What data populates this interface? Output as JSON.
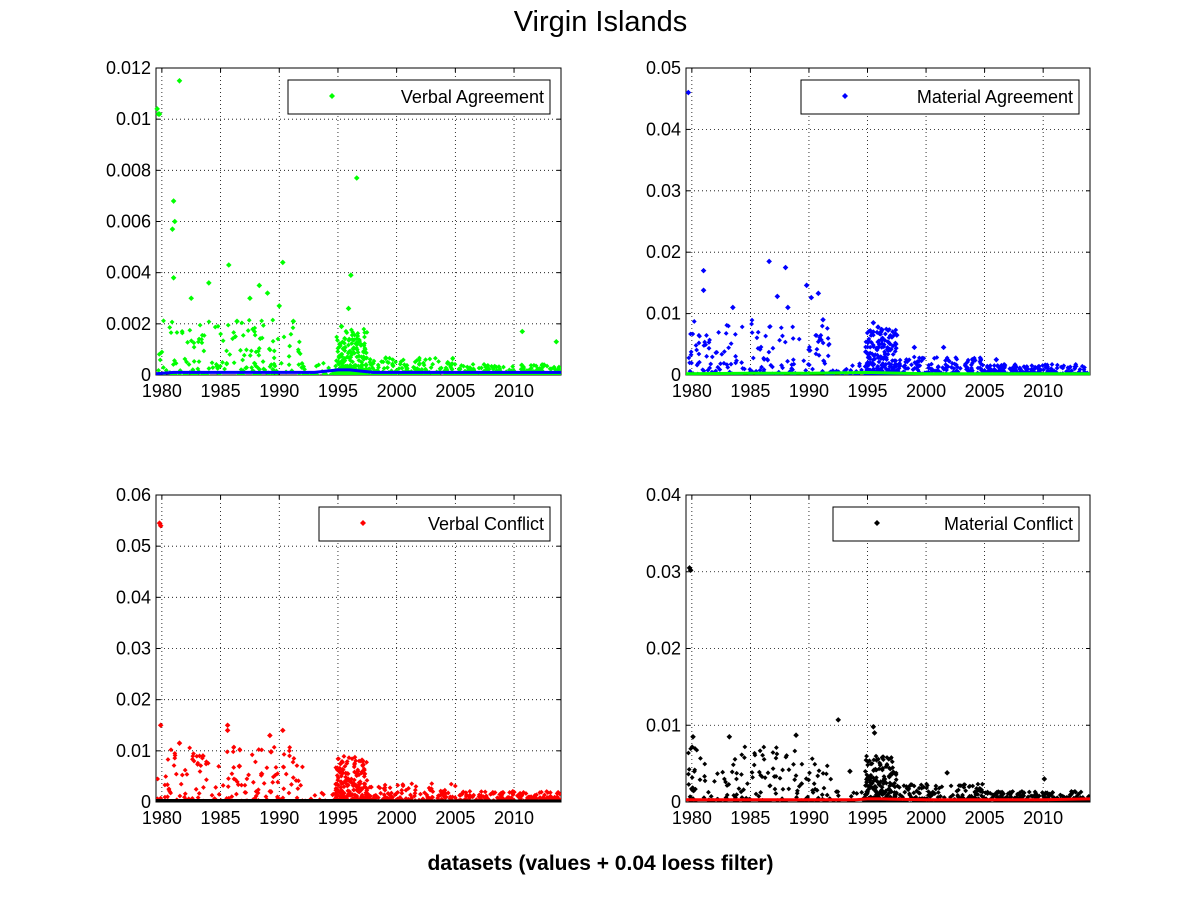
{
  "figure": {
    "title": "Virgin Islands",
    "xlabel": "datasets (values + 0.04 loess filter)"
  },
  "chart_data": [
    {
      "type": "scatter",
      "panel": "top-left",
      "legend": {
        "label": "Verbal Agreement",
        "placement": "top-right"
      },
      "xlim": [
        1979.5,
        2014
      ],
      "ylim": [
        0,
        0.012
      ],
      "xticks": [
        1980,
        1985,
        1990,
        1995,
        2000,
        2005,
        2010
      ],
      "xtick_labels": [
        "1980",
        "1985",
        "1990",
        "1995",
        "2000",
        "2005",
        "2010"
      ],
      "yticks": [
        0,
        0.002,
        0.004,
        0.006,
        0.008,
        0.01,
        0.012
      ],
      "ytick_labels": [
        "0",
        "0.002",
        "0.004",
        "0.006",
        "0.008",
        "0.01",
        "0.012"
      ],
      "grid": true,
      "series": [
        {
          "name": "Verbal Agreement",
          "color": "#00ff00",
          "marker": "diamond",
          "x": [
            1979.6,
            1979.7,
            1979.8,
            1980.9,
            1981.0,
            1981.1,
            1981.5,
            1985.7,
            1990.3,
            1996.1,
            1996.6,
            2010.7,
            2013.6,
            1981.0,
            1982.5,
            1984.0,
            1986.4,
            1987.5,
            1988.3,
            1989.0,
            1990.0,
            1991.2,
            1995.3,
            1995.9
          ],
          "y": [
            0.0104,
            0.0102,
            0.0102,
            0.0057,
            0.0068,
            0.006,
            0.0115,
            0.0043,
            0.0044,
            0.0039,
            0.0077,
            0.0017,
            0.0013,
            0.0038,
            0.003,
            0.0036,
            0.0021,
            0.003,
            0.0035,
            0.0032,
            0.0027,
            0.0021,
            0.0019,
            0.0026
          ]
        },
        {
          "name": "loess filter",
          "color": "#0000ff",
          "line": true,
          "x": [
            1979.5,
            1981,
            1985,
            1990,
            1993,
            1995,
            1996,
            1998,
            2005,
            2010,
            2014
          ],
          "y": [
            5e-05,
            0.0001,
            0.0001,
            0.0001,
            0.0001,
            0.0002,
            0.0002,
            0.0001,
            0.0001,
            0.0001,
            0.0001
          ]
        }
      ]
    },
    {
      "type": "scatter",
      "panel": "top-right",
      "legend": {
        "label": "Material Agreement",
        "placement": "top-right"
      },
      "xlim": [
        1979.5,
        2014
      ],
      "ylim": [
        0,
        0.05
      ],
      "xticks": [
        1980,
        1985,
        1990,
        1995,
        2000,
        2005,
        2010
      ],
      "xtick_labels": [
        "1980",
        "1985",
        "1990",
        "1995",
        "2000",
        "2005",
        "2010"
      ],
      "yticks": [
        0,
        0.01,
        0.02,
        0.03,
        0.04,
        0.05
      ],
      "ytick_labels": [
        "0",
        "0.01",
        "0.02",
        "0.03",
        "0.04",
        "0.05"
      ],
      "grid": true,
      "series": [
        {
          "name": "Material Agreement",
          "color": "#0000ff",
          "marker": "diamond",
          "x": [
            1979.7,
            1981.0,
            1981.0,
            1983.5,
            1986.6,
            1987.3,
            1988.0,
            1988.2,
            1989.8,
            1990.2,
            1990.8,
            1991.2,
            1995.5,
            1995.9,
            1997.5,
            1999.0,
            2001.5,
            2006.0
          ],
          "y": [
            0.046,
            0.017,
            0.0138,
            0.011,
            0.0185,
            0.0128,
            0.0175,
            0.011,
            0.0146,
            0.0126,
            0.0133,
            0.009,
            0.0085,
            0.0078,
            0.0065,
            0.0045,
            0.0045,
            0.0025
          ]
        },
        {
          "name": "loess filter",
          "color": "#00ff00",
          "line": true,
          "x": [
            1979.5,
            1985,
            1990,
            1995,
            2000,
            2005,
            2010,
            2014
          ],
          "y": [
            0.0002,
            0.0003,
            0.0003,
            0.0004,
            0.0002,
            0.0002,
            0.0002,
            0.0002
          ]
        }
      ]
    },
    {
      "type": "scatter",
      "panel": "bottom-left",
      "legend": {
        "label": "Verbal Conflict",
        "placement": "top-right"
      },
      "xlim": [
        1979.5,
        2014
      ],
      "ylim": [
        0,
        0.06
      ],
      "xticks": [
        1980,
        1985,
        1990,
        1995,
        2000,
        2005,
        2010
      ],
      "xtick_labels": [
        "1980",
        "1985",
        "1990",
        "1995",
        "2000",
        "2005",
        "2010"
      ],
      "yticks": [
        0,
        0.01,
        0.02,
        0.03,
        0.04,
        0.05,
        0.06
      ],
      "ytick_labels": [
        "0",
        "0.01",
        "0.02",
        "0.03",
        "0.04",
        "0.05",
        "0.06"
      ],
      "grid": true,
      "series": [
        {
          "name": "Verbal Conflict",
          "color": "#ff0000",
          "marker": "diamond",
          "x": [
            1979.8,
            1979.9,
            1979.9,
            1981.5,
            1985.6,
            1985.6,
            1989.2,
            1989.3,
            1990.3,
            1983.5,
            1986.6,
            1988.5
          ],
          "y": [
            0.0545,
            0.054,
            0.015,
            0.0115,
            0.015,
            0.014,
            0.013,
            0.0098,
            0.014,
            0.009,
            0.007,
            0.0055
          ]
        },
        {
          "name": "loess filter",
          "color": "#000000",
          "line": true,
          "x": [
            1979.5,
            1985,
            1990,
            1995,
            2000,
            2005,
            2010,
            2014
          ],
          "y": [
            0.0003,
            0.0003,
            0.0003,
            0.0003,
            0.0002,
            0.0002,
            0.0002,
            0.0002
          ]
        }
      ]
    },
    {
      "type": "scatter",
      "panel": "bottom-right",
      "legend": {
        "label": "Material Conflict",
        "placement": "top-right"
      },
      "xlim": [
        1979.5,
        2014
      ],
      "ylim": [
        0,
        0.04
      ],
      "xticks": [
        1980,
        1985,
        1990,
        1995,
        2000,
        2005,
        2010
      ],
      "xtick_labels": [
        "1980",
        "1985",
        "1990",
        "1995",
        "2000",
        "2005",
        "2010"
      ],
      "yticks": [
        0,
        0.01,
        0.02,
        0.03,
        0.04
      ],
      "ytick_labels": [
        "0",
        "0.01",
        "0.02",
        "0.03",
        "0.04"
      ],
      "grid": true,
      "series": [
        {
          "name": "Material Conflict",
          "color": "#000000",
          "marker": "diamond",
          "x": [
            1979.8,
            1979.9,
            1980.1,
            1983.2,
            1988.9,
            1992.5,
            1995.5,
            1995.6,
            1993.5,
            2001.8,
            2010.1
          ],
          "y": [
            0.0305,
            0.0302,
            0.0085,
            0.0085,
            0.0087,
            0.0107,
            0.0098,
            0.009,
            0.004,
            0.0038,
            0.003
          ]
        },
        {
          "name": "loess filter",
          "color": "#ff0000",
          "line": true,
          "x": [
            1979.5,
            1985,
            1990,
            1994,
            1995,
            1996,
            2000,
            2005,
            2010,
            2014
          ],
          "y": [
            0.0003,
            0.0003,
            0.0003,
            0.0003,
            0.0004,
            0.0004,
            0.0003,
            0.0003,
            0.0003,
            0.0004
          ]
        }
      ]
    }
  ]
}
